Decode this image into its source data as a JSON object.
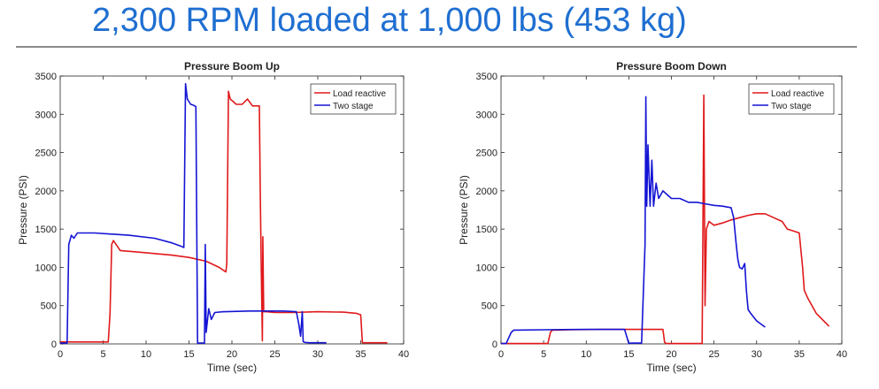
{
  "slide": {
    "title": "2,300 RPM loaded at 1,000 lbs (453 kg)"
  },
  "colors": {
    "title": "#1f6fd1",
    "load_reactive": "#e0191b",
    "two_stage": "#1414d4",
    "axis": "#262626"
  },
  "chart_data": [
    {
      "type": "line",
      "title": "Pressure Boom Up",
      "xlabel": "Time (sec)",
      "ylabel": "Pressure (PSI)",
      "xlim": [
        0,
        40
      ],
      "ylim": [
        0,
        3500
      ],
      "xticks": [
        0,
        5,
        10,
        15,
        20,
        25,
        30,
        35,
        40
      ],
      "yticks": [
        0,
        500,
        1000,
        1500,
        2000,
        2500,
        3000,
        3500
      ],
      "grid": false,
      "legend_position": "top-right",
      "series": [
        {
          "name": "Load reactive",
          "color": "#e0191b",
          "x": [
            0,
            5.6,
            5.8,
            6.0,
            6.2,
            7,
            9,
            11,
            13,
            15,
            17,
            18.5,
            19.3,
            19.4,
            19.6,
            19.8,
            20.5,
            21.2,
            21.8,
            22.4,
            23.2,
            23.3,
            23.4,
            23.55,
            23.6,
            23.7,
            24,
            25,
            27,
            30,
            33,
            34.5,
            35.0,
            35.2,
            36,
            38.1
          ],
          "y": [
            25,
            25,
            400,
            1300,
            1350,
            1220,
            1200,
            1180,
            1160,
            1130,
            1080,
            1000,
            940,
            1050,
            3300,
            3200,
            3130,
            3130,
            3200,
            3110,
            3110,
            2000,
            1100,
            40,
            1400,
            420,
            420,
            410,
            410,
            420,
            415,
            400,
            380,
            15,
            15,
            15
          ]
        },
        {
          "name": "Two stage",
          "color": "#1414d4",
          "x": [
            0,
            0.8,
            1.0,
            1.3,
            1.6,
            2,
            4,
            8,
            11,
            13,
            14,
            14.4,
            14.6,
            14.8,
            15.2,
            15.5,
            15.8,
            16.0,
            16.1,
            16.8,
            16.9,
            17.0,
            17.3,
            17.6,
            18,
            19,
            22,
            24,
            26,
            27.5,
            27.8,
            28.0,
            28.2,
            28.3,
            28.5,
            29,
            31
          ],
          "y": [
            10,
            10,
            1300,
            1420,
            1380,
            1450,
            1450,
            1420,
            1380,
            1320,
            1280,
            1260,
            3400,
            3200,
            3130,
            3120,
            3100,
            10,
            10,
            10,
            1300,
            150,
            460,
            320,
            410,
            420,
            430,
            430,
            430,
            420,
            250,
            100,
            420,
            30,
            20,
            15,
            15
          ]
        }
      ]
    },
    {
      "type": "line",
      "title": "Pressure Boom Down",
      "xlabel": "Time (sec)",
      "ylabel": "Pressure (PSI)",
      "xlim": [
        0,
        40
      ],
      "ylim": [
        0,
        3500
      ],
      "xticks": [
        0,
        5,
        10,
        15,
        20,
        25,
        30,
        35,
        40
      ],
      "yticks": [
        0,
        500,
        1000,
        1500,
        2000,
        2500,
        3000,
        3500
      ],
      "grid": false,
      "legend_position": "top-right",
      "series": [
        {
          "name": "Load reactive",
          "color": "#e0191b",
          "x": [
            0,
            5.5,
            5.8,
            6.0,
            8,
            12,
            16,
            19.0,
            19.2,
            19.4,
            20,
            23.6,
            23.8,
            23.95,
            24.1,
            24.4,
            25,
            26,
            27,
            28,
            29,
            30,
            31,
            32,
            33,
            33.6,
            34.2,
            35.0,
            35.4,
            35.6,
            36,
            37,
            38.5
          ],
          "y": [
            5,
            5,
            150,
            180,
            185,
            190,
            190,
            190,
            20,
            5,
            5,
            5,
            3250,
            500,
            1500,
            1600,
            1550,
            1580,
            1620,
            1650,
            1680,
            1700,
            1700,
            1650,
            1600,
            1500,
            1480,
            1450,
            1000,
            700,
            600,
            400,
            230
          ]
        },
        {
          "name": "Two stage",
          "color": "#1414d4",
          "x": [
            0,
            0.6,
            0.9,
            1.2,
            1.5,
            5,
            10,
            14.5,
            15,
            15.2,
            16.5,
            16.9,
            17.0,
            17.1,
            17.25,
            17.5,
            17.7,
            17.9,
            18.2,
            18.5,
            19,
            20,
            21,
            22,
            23,
            24,
            25,
            26,
            27,
            27.3,
            27.6,
            27.8,
            28.0,
            28.3,
            28.6,
            28.8,
            29.0,
            29.3,
            30,
            31
          ],
          "y": [
            5,
            5,
            80,
            150,
            180,
            185,
            190,
            190,
            5,
            10,
            10,
            1300,
            3230,
            1800,
            2600,
            1800,
            2400,
            1800,
            2100,
            1900,
            2000,
            1900,
            1900,
            1850,
            1850,
            1830,
            1810,
            1800,
            1780,
            1650,
            1300,
            1100,
            1000,
            980,
            1050,
            700,
            450,
            400,
            300,
            220
          ]
        }
      ]
    }
  ]
}
